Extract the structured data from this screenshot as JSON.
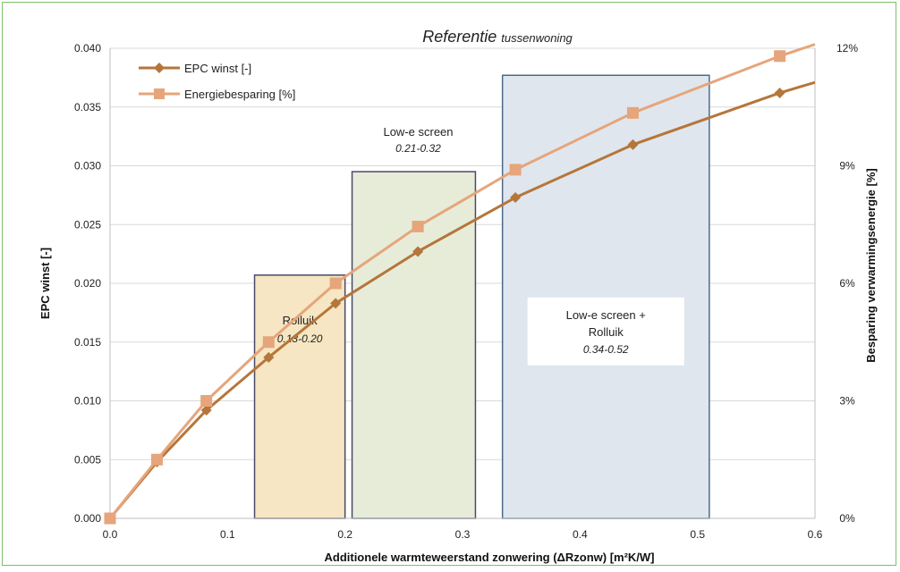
{
  "chart_data": {
    "type": "line",
    "title_main": "Referentie",
    "title_sub": "tussenwoning",
    "xlabel": "Additionele warmteweerstand zonwering (ΔRzonw) [m²K/W]",
    "ylabel_left": "EPC winst  [-]",
    "ylabel_right": "Besparing verwarmingsenergie [%]",
    "xlim": [
      0,
      0.6
    ],
    "ylim_left": [
      0,
      0.04
    ],
    "ylim_right": [
      0,
      12
    ],
    "x_ticks": [
      "0.0",
      "0.1",
      "0.2",
      "0.3",
      "0.4",
      "0.5",
      "0.6"
    ],
    "y_left_ticks": [
      "0.000",
      "0.005",
      "0.010",
      "0.015",
      "0.020",
      "0.025",
      "0.030",
      "0.035",
      "0.040"
    ],
    "y_right_ticks": [
      "0%",
      "3%",
      "6%",
      "9%",
      "12%"
    ],
    "grid": "horizontal",
    "legend_position": "top-left",
    "series": [
      {
        "name": "EPC winst [-]",
        "axis": "left",
        "color": "#b5763a",
        "marker": "diamond",
        "x": [
          0.0,
          0.04,
          0.082,
          0.135,
          0.192,
          0.262,
          0.345,
          0.445,
          0.57
        ],
        "y": [
          0.0,
          0.0048,
          0.0092,
          0.0137,
          0.0183,
          0.0227,
          0.0273,
          0.0318,
          0.0362
        ],
        "line_extends_to": [
          0.6,
          0.0371
        ]
      },
      {
        "name": "Energiebesparing [%]",
        "axis": "right",
        "color": "#e6a57a",
        "marker": "square",
        "x": [
          0.0,
          0.04,
          0.082,
          0.135,
          0.192,
          0.262,
          0.345,
          0.445,
          0.57
        ],
        "y": [
          0.0,
          1.5,
          3.0,
          4.5,
          6.0,
          7.45,
          8.9,
          10.35,
          11.8
        ],
        "line_extends_to": [
          0.6,
          12.1
        ]
      }
    ],
    "regions": [
      {
        "label": "Rolluik",
        "range": "0.13-0.20",
        "x0": 0.123,
        "x1": 0.2,
        "ytop": 0.0207,
        "fill": "#f6e6c3",
        "stroke": "#4a4a6a"
      },
      {
        "label": "Low-e screen",
        "range": "0.21-0.32",
        "x0": 0.206,
        "x1": 0.311,
        "ytop": 0.0295,
        "fill": "#e7ecd9",
        "stroke": "#4a4a6a"
      },
      {
        "label": "Low-e screen +\nRolluik",
        "range": "0.34-0.52",
        "x0": 0.334,
        "x1": 0.51,
        "ytop": 0.0377,
        "fill": "#dfe6ee",
        "stroke": "#4b6a8a",
        "label_bg": "#ffffff"
      }
    ]
  }
}
